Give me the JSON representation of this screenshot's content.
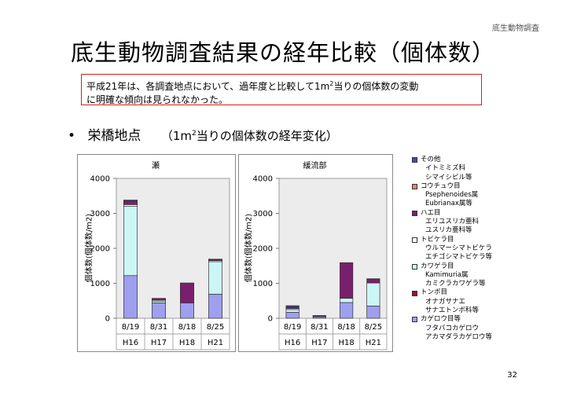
{
  "header_label": "底生動物調査",
  "title": "底生動物調査結果の経年比較（個体数）",
  "summary_line1_pre": "平成21年は、各調査地点において、過年度と比較して1m",
  "summary_sup": "2",
  "summary_line1_post": "当りの個体数の変動",
  "summary_line2": "に明確な傾向は見られなかった。",
  "bullet_main": "栄橋地点",
  "bullet_sub_pre": "（1m",
  "bullet_sub_sup": "2",
  "bullet_sub_post": "当りの個体数の経年変化）",
  "page_number": "32",
  "legend": [
    {
      "label": "その他",
      "color": "#3b4cc0",
      "subs": [
        "イトミミズ科",
        "シマイシビル等"
      ]
    },
    {
      "label": "コウチュウ目",
      "color": "#e8837e",
      "subs": [
        "Psephenoides属",
        "Eubrianax属等"
      ]
    },
    {
      "label": "ハエ目",
      "color": "#7a1f6e",
      "subs": [
        "エリユスリカ亜科",
        "ユスリカ亜科等"
      ]
    },
    {
      "label": "トビケラ目",
      "color": "#ffffff",
      "subs": [
        "ウルマーシマトビケラ",
        "エチゴシマトビケラ等"
      ]
    },
    {
      "label": "カワゲラ目",
      "color": "#ccf5f5",
      "subs": [
        "Kamimuria属",
        "カミクラカワゲラ等"
      ]
    },
    {
      "label": "トンボ目",
      "color": "#a60f2a",
      "subs": [
        "オナガサナエ",
        "サナエトンボ科等"
      ]
    },
    {
      "label": "カゲロウ目等",
      "color": "#9f9fef",
      "subs": [
        "フタバコカゲロウ",
        "アカマダラカゲロウ等"
      ]
    }
  ],
  "chart_data": [
    {
      "type": "bar",
      "title": "瀬",
      "ylabel": "個体数(個体数/m2)",
      "ylim": [
        0,
        4000
      ],
      "yticks": [
        "0",
        "1000",
        "2000",
        "3000",
        "4000"
      ],
      "categories": [
        "8/19",
        "8/31",
        "8/18",
        "8/25"
      ],
      "years": [
        "H16",
        "H17",
        "H18",
        "H21"
      ],
      "series": [
        {
          "name": "カゲロウ目等",
          "color": "#9f9fef",
          "values": [
            1220,
            440,
            440,
            690
          ]
        },
        {
          "name": "トンボ目",
          "color": "#a60f2a",
          "values": [
            0,
            0,
            0,
            0
          ]
        },
        {
          "name": "カワゲラ目",
          "color": "#ccf5f5",
          "values": [
            1980,
            50,
            0,
            930
          ]
        },
        {
          "name": "トビケラ目",
          "color": "#ffffff",
          "values": [
            50,
            30,
            0,
            30
          ]
        },
        {
          "name": "ハエ目",
          "color": "#7a1f6e",
          "values": [
            100,
            50,
            570,
            30
          ]
        },
        {
          "name": "コウチュウ目",
          "color": "#e8837e",
          "values": [
            10,
            0,
            0,
            0
          ]
        },
        {
          "name": "その他",
          "color": "#3b4cc0",
          "values": [
            20,
            0,
            0,
            10
          ]
        }
      ]
    },
    {
      "type": "bar",
      "title": "緩流部",
      "ylabel": "個体数(個体数/m2)",
      "ylim": [
        0,
        4000
      ],
      "yticks": [
        "0",
        "1000",
        "2000",
        "3000",
        "4000"
      ],
      "categories": [
        "8/19",
        "8/31",
        "8/18",
        "8/25"
      ],
      "years": [
        "H16",
        "H17",
        "H18",
        "H21"
      ],
      "series": [
        {
          "name": "カゲロウ目等",
          "color": "#9f9fef",
          "values": [
            170,
            40,
            450,
            350
          ]
        },
        {
          "name": "トンボ目",
          "color": "#a60f2a",
          "values": [
            0,
            0,
            0,
            0
          ]
        },
        {
          "name": "カワゲラ目",
          "color": "#ccf5f5",
          "values": [
            80,
            20,
            120,
            660
          ]
        },
        {
          "name": "トビケラ目",
          "color": "#ffffff",
          "values": [
            30,
            0,
            0,
            0
          ]
        },
        {
          "name": "ハエ目",
          "color": "#7a1f6e",
          "values": [
            50,
            10,
            1020,
            100
          ]
        },
        {
          "name": "コウチュウ目",
          "color": "#e8837e",
          "values": [
            0,
            0,
            0,
            0
          ]
        },
        {
          "name": "その他",
          "color": "#3b4cc0",
          "values": [
            30,
            10,
            0,
            20
          ]
        }
      ]
    }
  ]
}
